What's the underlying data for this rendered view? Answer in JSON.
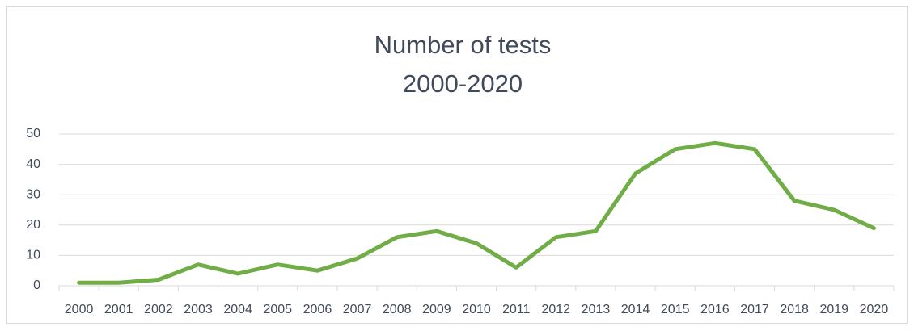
{
  "chart_data": {
    "type": "line",
    "title": [
      "Number of tests",
      "2000-2020"
    ],
    "categories": [
      "2000",
      "2001",
      "2002",
      "2003",
      "2004",
      "2005",
      "2006",
      "2007",
      "2008",
      "2009",
      "2010",
      "2011",
      "2012",
      "2013",
      "2014",
      "2015",
      "2016",
      "2017",
      "2018",
      "2019",
      "2020"
    ],
    "values": [
      1,
      1,
      2,
      7,
      4,
      7,
      5,
      9,
      16,
      18,
      14,
      6,
      16,
      18,
      37,
      45,
      47,
      45,
      28,
      25,
      19
    ],
    "color": "#70ad47",
    "ylim": [
      0,
      50
    ],
    "yticks": [
      0,
      10,
      20,
      30,
      40,
      50
    ],
    "grid": true
  }
}
